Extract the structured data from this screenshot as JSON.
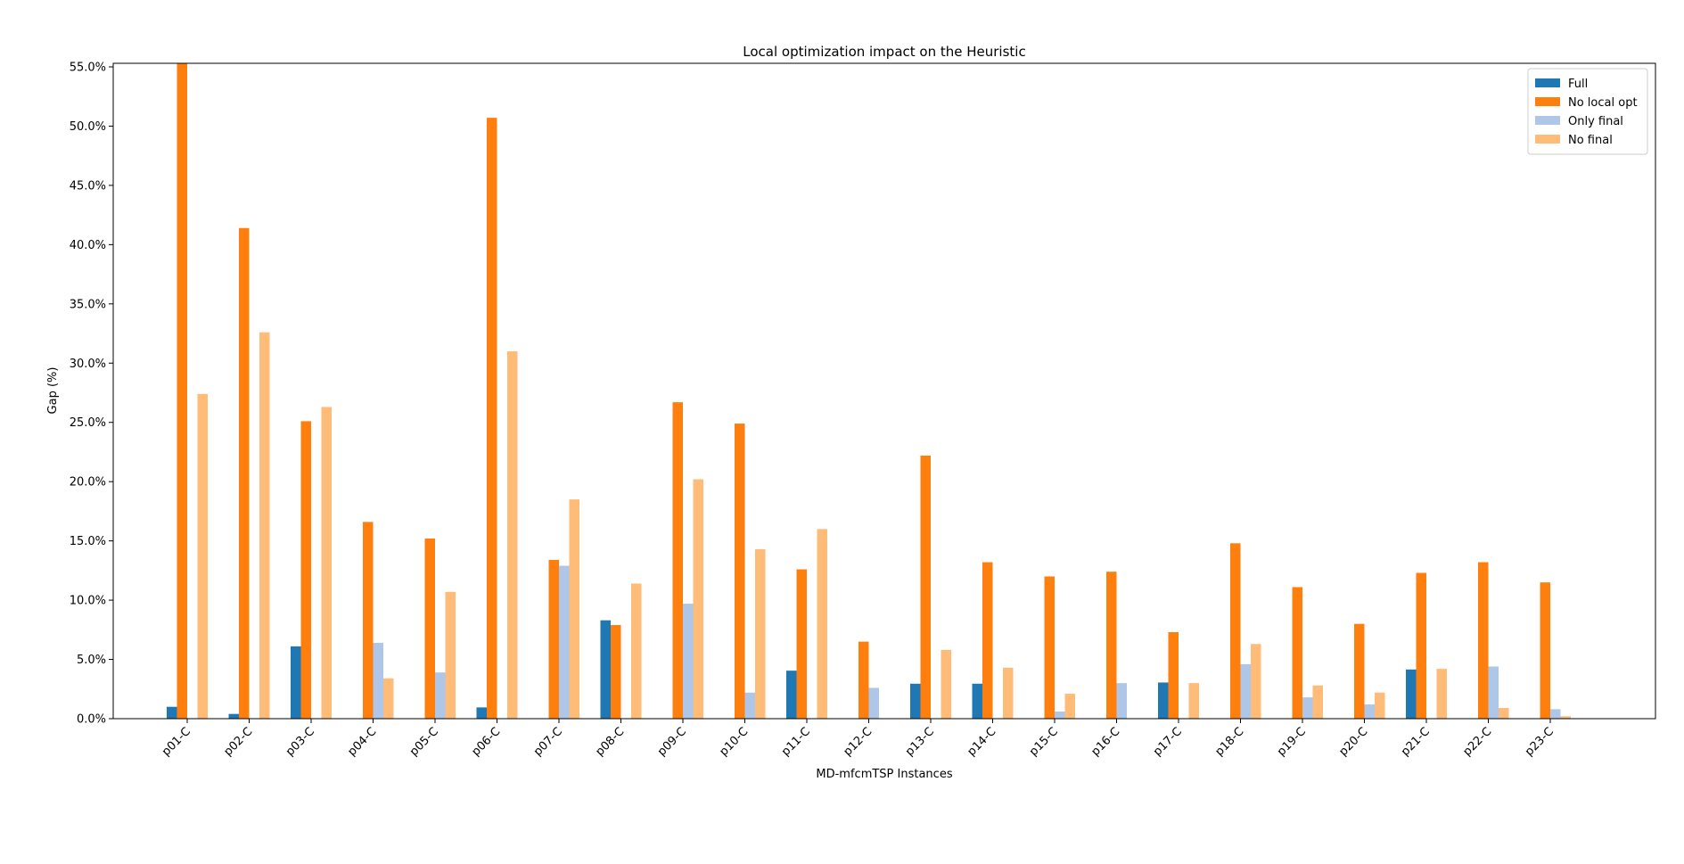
{
  "chart_data": {
    "type": "bar",
    "title": "Local optimization impact on the Heuristic",
    "xlabel": "MD-mfcmTSP Instances",
    "ylabel": "Gap (%)",
    "ylim": [
      0,
      55.3
    ],
    "yticks": [
      0,
      5,
      10,
      15,
      20,
      25,
      30,
      35,
      40,
      45,
      50,
      55
    ],
    "ytick_labels": [
      "0.0%",
      "5.0%",
      "10.0%",
      "15.0%",
      "20.0%",
      "25.0%",
      "30.0%",
      "35.0%",
      "40.0%",
      "45.0%",
      "50.0%",
      "55.0%"
    ],
    "legend_position": "top-right",
    "grid": false,
    "categories": [
      "p01-C",
      "p02-C",
      "p03-C",
      "p04-C",
      "p05-C",
      "p06-C",
      "p07-C",
      "p08-C",
      "p09-C",
      "p10-C",
      "p11-C",
      "p12-C",
      "p13-C",
      "p14-C",
      "p15-C",
      "p16-C",
      "p17-C",
      "p18-C",
      "p19-C",
      "p20-C",
      "p21-C",
      "p22-C",
      "p23-C"
    ],
    "series": [
      {
        "name": "Full",
        "color": "#1f77b4",
        "values": [
          1.0,
          0.4,
          6.1,
          0,
          0,
          0.95,
          0,
          8.3,
          0,
          0,
          4.05,
          0,
          2.95,
          2.95,
          0,
          0,
          3.05,
          0,
          0,
          0,
          4.15,
          0,
          0
        ]
      },
      {
        "name": "No local opt",
        "color": "#ff7f0e",
        "values": [
          55.3,
          41.4,
          25.1,
          16.6,
          15.2,
          50.7,
          13.4,
          7.9,
          26.7,
          24.9,
          12.6,
          6.5,
          22.2,
          13.2,
          12.0,
          12.4,
          7.3,
          14.8,
          11.1,
          8.0,
          12.3,
          13.2,
          11.5
        ]
      },
      {
        "name": "Only final",
        "color": "#aec7e8",
        "values": [
          0,
          0,
          0,
          6.4,
          3.9,
          0,
          12.9,
          0,
          9.7,
          2.2,
          0,
          2.6,
          0,
          0,
          0.6,
          3.0,
          0,
          4.6,
          1.8,
          1.2,
          0,
          4.4,
          0.8
        ]
      },
      {
        "name": "No final",
        "color": "#ffbb78",
        "values": [
          27.4,
          32.6,
          26.3,
          3.4,
          10.7,
          31.0,
          18.5,
          11.4,
          20.2,
          14.3,
          16.0,
          0,
          5.8,
          4.3,
          2.1,
          0,
          3.0,
          6.3,
          2.8,
          2.2,
          4.2,
          0.9,
          0.2
        ]
      }
    ]
  }
}
